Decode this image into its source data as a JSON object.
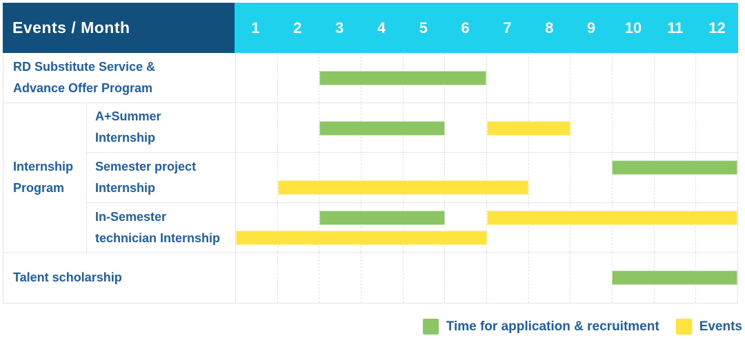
{
  "header": {
    "events_month_label": "Events / Month"
  },
  "labels": {
    "rd_line1": "RD Substitute Service &",
    "rd_line2": "Advance Offer Program",
    "group_line1": "Internship",
    "group_line2": "Program",
    "sub1_line1": "A+Summer",
    "sub1_line2": "Internship",
    "sub2_line1": "Semester project",
    "sub2_line2": "Internship",
    "sub3_line1": "In-Semester",
    "sub3_line2": "technician Internship",
    "talent": "Talent scholarship"
  },
  "colors": {
    "header_navy": "#134F7D",
    "header_cyan": "#1FD1EC",
    "label_blue": "#1E5FA4",
    "application_green": "#8CC564",
    "events_yellow": "#FFE33E"
  },
  "chart_data": {
    "type": "bar",
    "subtype": "gantt",
    "xlabel": "Month",
    "x_range": [
      1,
      12
    ],
    "categories": [
      "1",
      "2",
      "3",
      "4",
      "5",
      "6",
      "7",
      "8",
      "9",
      "10",
      "11",
      "12"
    ],
    "grid": "dashed-vertical-month-lines",
    "legend_position": "bottom-right",
    "colors": {
      "application": "#8CC564",
      "events": "#FFE33E"
    },
    "legend": [
      {
        "kind": "application",
        "label": "Time for application & recruitment",
        "color": "#8CC564"
      },
      {
        "kind": "events",
        "label": "Events",
        "color": "#FFE33E"
      }
    ],
    "rows": [
      {
        "event": "RD Substitute Service & Advance Offer Program",
        "group": null,
        "bars": [
          {
            "kind": "application",
            "start_month": 3,
            "end_month": 6,
            "lane": "center"
          }
        ]
      },
      {
        "event": "A+Summer Internship",
        "group": "Internship Program",
        "bars": [
          {
            "kind": "application",
            "start_month": 3,
            "end_month": 5,
            "lane": "center"
          },
          {
            "kind": "events",
            "start_month": 7,
            "end_month": 8,
            "lane": "center"
          }
        ]
      },
      {
        "event": "Semester project Internship",
        "group": "Internship Program",
        "bars": [
          {
            "kind": "application",
            "start_month": 10,
            "end_month": 12,
            "lane": "top"
          },
          {
            "kind": "events",
            "start_month": 2,
            "end_month": 7,
            "lane": "bottom"
          }
        ]
      },
      {
        "event": "In-Semester technician Internship",
        "group": "Internship Program",
        "bars": [
          {
            "kind": "application",
            "start_month": 3,
            "end_month": 5,
            "lane": "top"
          },
          {
            "kind": "events",
            "start_month": 1,
            "end_month": 6,
            "lane": "bottom"
          },
          {
            "kind": "events",
            "start_month": 7,
            "end_month": 12,
            "lane": "top"
          }
        ]
      },
      {
        "event": "Talent scholarship",
        "group": null,
        "bars": [
          {
            "kind": "application",
            "start_month": 10,
            "end_month": 12,
            "lane": "center"
          }
        ]
      }
    ]
  }
}
